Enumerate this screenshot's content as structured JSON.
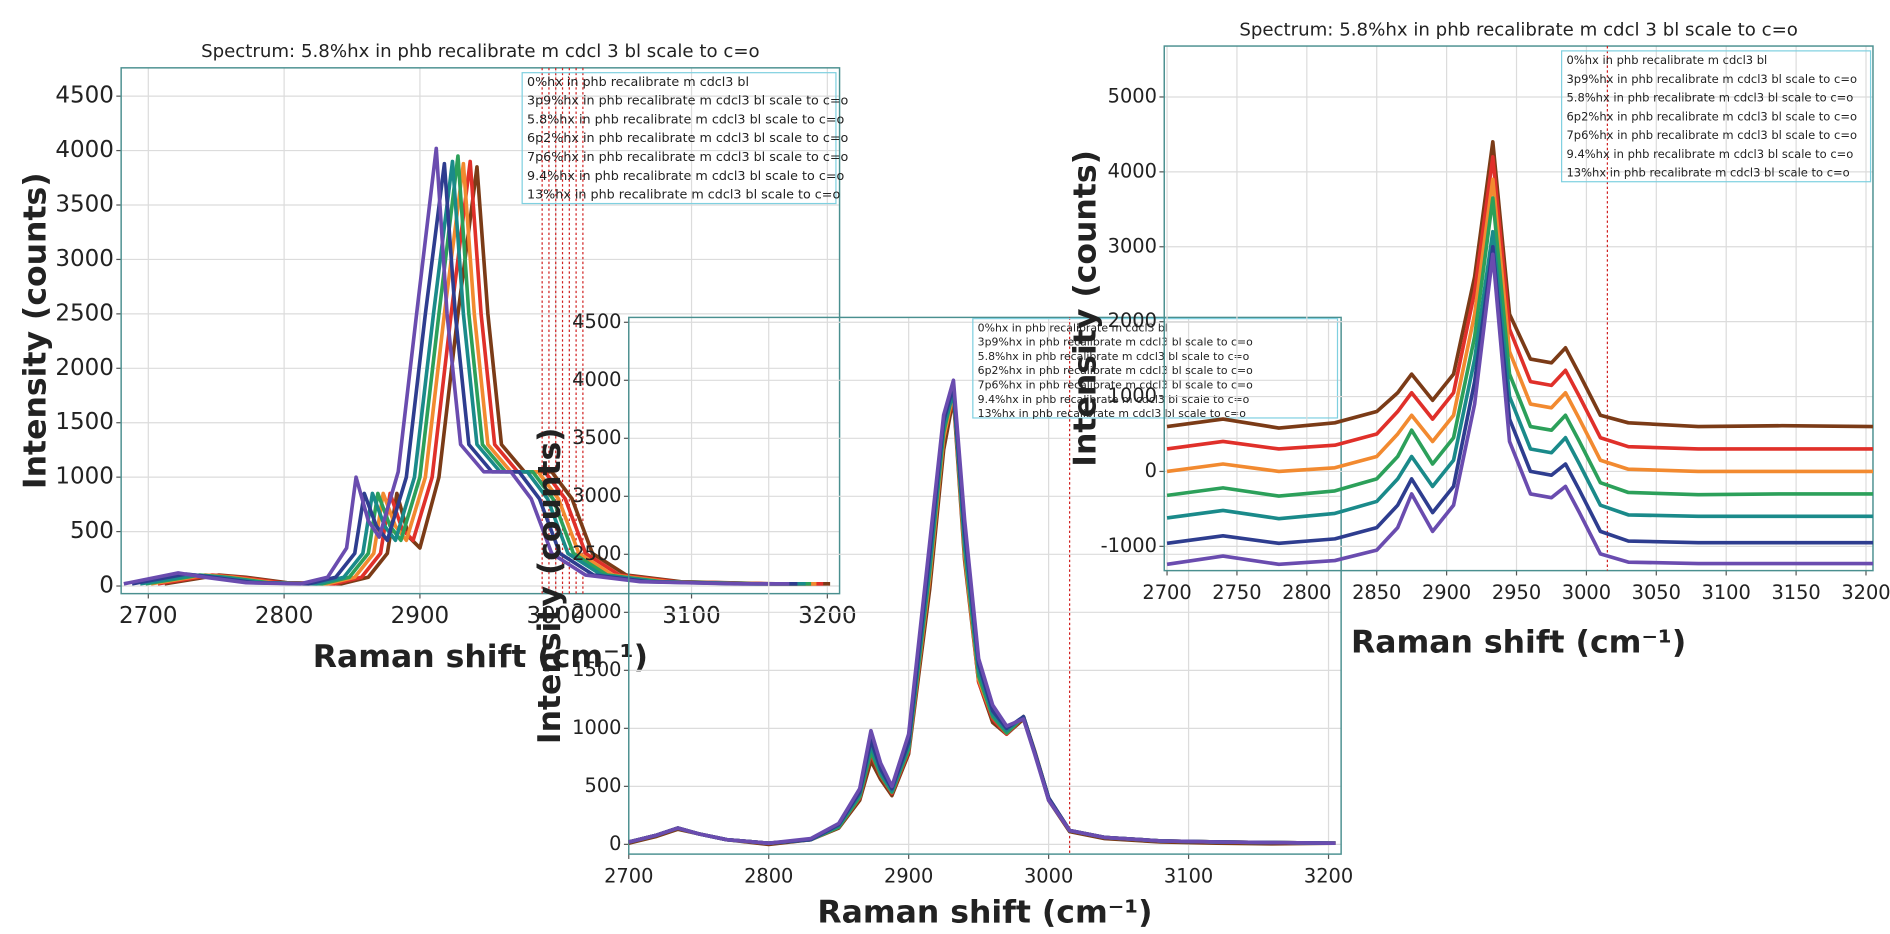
{
  "chart_data": [
    {
      "type": "line",
      "title": "Spectrum: 5.8%hx in phb recalibrate m cdcl 3 bl scale to c=o",
      "x_label": "Raman shift (cm⁻¹)",
      "y_label": "Intensity (counts)",
      "xlim": [
        2680,
        3209
      ],
      "xticks": [
        2700,
        2800,
        2900,
        3000,
        3100,
        3200
      ],
      "ylim": [
        -70,
        4760
      ],
      "yticks": [
        0,
        500,
        1000,
        1500,
        2000,
        2500,
        3000,
        3500,
        4000,
        4500
      ],
      "grid": true,
      "cursor_x": [
        2990,
        2995,
        3000,
        3005,
        3010,
        3015,
        3020
      ],
      "series": [
        {
          "name": "0%hx in phb recalibrate m cdcl3 bl",
          "color": "#7b3b17",
          "x": [
            2712,
            2752,
            2772,
            2802,
            2842,
            2862,
            2876,
            2883,
            2892,
            2900,
            2914,
            2928,
            2942,
            2950,
            2960,
            2977,
            2997,
            3012,
            3027,
            3052,
            3092,
            3162,
            3202
          ],
          "values": [
            20,
            100,
            80,
            30,
            20,
            80,
            300,
            850,
            450,
            350,
            1000,
            2500,
            3850,
            2500,
            1300,
            1050,
            1050,
            800,
            300,
            100,
            40,
            20,
            20
          ]
        },
        {
          "name": "3p9%hx in phb recalibrate m cdcl3 bl scale to c=o",
          "color": "#e0302a",
          "x": [
            2707,
            2747,
            2767,
            2797,
            2837,
            2857,
            2871,
            2878,
            2887,
            2895,
            2909,
            2923,
            2937,
            2945,
            2955,
            2972,
            2992,
            3007,
            3022,
            3047,
            3087,
            3157,
            3197
          ],
          "values": [
            20,
            100,
            80,
            30,
            20,
            80,
            300,
            850,
            520,
            420,
            1000,
            2500,
            3900,
            2500,
            1300,
            1050,
            1050,
            800,
            300,
            100,
            40,
            20,
            20
          ]
        },
        {
          "name": "5.8%hx in phb recalibrate m cdcl3 bl scale to c=o",
          "color": "#f28a30",
          "x": [
            2702,
            2742,
            2762,
            2792,
            2832,
            2852,
            2866,
            2873,
            2882,
            2890,
            2904,
            2918,
            2932,
            2940,
            2950,
            2967,
            2987,
            3002,
            3017,
            3042,
            3082,
            3152,
            3192
          ],
          "values": [
            20,
            100,
            80,
            30,
            20,
            80,
            300,
            850,
            550,
            420,
            1000,
            2500,
            3880,
            2500,
            1300,
            1050,
            1050,
            800,
            300,
            100,
            40,
            20,
            20
          ]
        },
        {
          "name": "6p2%hx in phb recalibrate m cdcl3 bl scale to c=o",
          "color": "#2ca05a",
          "x": [
            2698,
            2738,
            2758,
            2788,
            2828,
            2848,
            2862,
            2869,
            2878,
            2886,
            2900,
            2914,
            2928,
            2936,
            2946,
            2963,
            2983,
            2998,
            3013,
            3038,
            3078,
            3148,
            3188
          ],
          "values": [
            20,
            100,
            80,
            30,
            20,
            80,
            300,
            850,
            550,
            420,
            1000,
            2500,
            3950,
            2500,
            1300,
            1050,
            1050,
            800,
            300,
            100,
            40,
            20,
            20
          ]
        },
        {
          "name": "7p6%hx in phb recalibrate m cdcl3 bl scale to c=o",
          "color": "#1a8a8a",
          "x": [
            2694,
            2734,
            2754,
            2784,
            2824,
            2844,
            2858,
            2865,
            2874,
            2882,
            2896,
            2910,
            2924,
            2932,
            2942,
            2959,
            2979,
            2994,
            3009,
            3034,
            3074,
            3144,
            3184
          ],
          "values": [
            20,
            100,
            80,
            30,
            20,
            80,
            300,
            850,
            550,
            420,
            1000,
            2500,
            3900,
            2500,
            1300,
            1050,
            1050,
            800,
            300,
            100,
            40,
            20,
            20
          ]
        },
        {
          "name": "9.4%hx in phb recalibrate m cdcl3 bl scale to c=o",
          "color": "#2e3d8f",
          "x": [
            2688,
            2728,
            2748,
            2778,
            2818,
            2838,
            2852,
            2859,
            2868,
            2876,
            2890,
            2904,
            2918,
            2926,
            2936,
            2953,
            2973,
            2988,
            3003,
            3028,
            3068,
            3138,
            3178
          ],
          "values": [
            20,
            110,
            80,
            30,
            20,
            80,
            300,
            850,
            550,
            420,
            1000,
            2500,
            3880,
            2500,
            1300,
            1050,
            1050,
            800,
            300,
            100,
            40,
            20,
            20
          ]
        },
        {
          "name": "13%hx in phb recalibrate m cdcl3 bl scale to c=o",
          "color": "#6a4caf",
          "x": [
            2682,
            2722,
            2742,
            2772,
            2812,
            2832,
            2846,
            2853,
            2862,
            2870,
            2884,
            2898,
            2912,
            2920,
            2930,
            2947,
            2967,
            2982,
            2997,
            3022,
            3062,
            3132,
            3172
          ],
          "values": [
            20,
            120,
            80,
            30,
            20,
            80,
            350,
            1000,
            600,
            450,
            1050,
            2550,
            4020,
            2500,
            1300,
            1050,
            1050,
            800,
            300,
            100,
            40,
            20,
            20
          ]
        }
      ]
    },
    {
      "type": "line",
      "x_label": "Raman shift (cm⁻¹)",
      "y_label": "Intensity (counts)",
      "xlim": [
        2700,
        3209
      ],
      "xticks": [
        2700,
        2800,
        2900,
        3000,
        3100,
        3200
      ],
      "ylim": [
        -84,
        4542
      ],
      "yticks": [
        0,
        500,
        1000,
        1500,
        2000,
        2500,
        3000,
        3500,
        4000,
        4500
      ],
      "grid": true,
      "cursor_x": [
        3015
      ],
      "x": [
        2700,
        2720,
        2735,
        2750,
        2770,
        2800,
        2830,
        2850,
        2865,
        2873,
        2880,
        2888,
        2900,
        2915,
        2925,
        2932,
        2940,
        2950,
        2960,
        2970,
        2982,
        2990,
        3000,
        3015,
        3040,
        3080,
        3120,
        3160,
        3205
      ],
      "series": [
        {
          "name": "0%hx in phb recalibrate m cdcl3 bl",
          "color": "#7b3b17",
          "values": [
            10,
            70,
            130,
            90,
            40,
            0,
            40,
            140,
            380,
            720,
            560,
            420,
            780,
            2200,
            3400,
            3850,
            2450,
            1400,
            1050,
            950,
            1080,
            800,
            380,
            110,
            50,
            20,
            10,
            5,
            10
          ]
        },
        {
          "name": "3p9%hx in phb recalibrate m cdcl3 bl scale to c=o",
          "color": "#e0302a",
          "values": [
            20,
            80,
            140,
            90,
            40,
            10,
            40,
            150,
            400,
            780,
            590,
            440,
            800,
            2300,
            3500,
            3880,
            2500,
            1400,
            1080,
            950,
            1100,
            800,
            400,
            120,
            60,
            30,
            20,
            15,
            10
          ]
        },
        {
          "name": "5.8%hx in phb recalibrate m cdcl3 bl scale to c=o",
          "color": "#f28a30",
          "values": [
            20,
            80,
            140,
            90,
            40,
            10,
            40,
            150,
            410,
            820,
            600,
            450,
            820,
            2300,
            3500,
            3900,
            2500,
            1420,
            1100,
            960,
            1100,
            810,
            400,
            120,
            60,
            30,
            20,
            15,
            10
          ]
        },
        {
          "name": "6p2%hx in phb recalibrate m cdcl3 bl scale to c=o",
          "color": "#2ca05a",
          "values": [
            20,
            80,
            140,
            90,
            40,
            10,
            40,
            150,
            410,
            800,
            600,
            450,
            820,
            2350,
            3550,
            3920,
            2550,
            1450,
            1100,
            960,
            1100,
            800,
            400,
            120,
            60,
            30,
            20,
            15,
            10
          ]
        },
        {
          "name": "7p6%hx in phb recalibrate m cdcl3 bl scale to c=o",
          "color": "#1a8a8a",
          "values": [
            20,
            80,
            140,
            90,
            40,
            10,
            40,
            160,
            430,
            850,
            620,
            460,
            850,
            2400,
            3600,
            3900,
            2600,
            1500,
            1120,
            980,
            1100,
            800,
            400,
            120,
            60,
            30,
            20,
            15,
            10
          ]
        },
        {
          "name": "9.4%hx in phb recalibrate m cdcl3 bl scale to c=o",
          "color": "#2e3d8f",
          "values": [
            20,
            80,
            140,
            90,
            40,
            10,
            40,
            170,
            450,
            900,
            650,
            480,
            880,
            2500,
            3650,
            3950,
            2700,
            1550,
            1150,
            1000,
            1100,
            800,
            400,
            120,
            60,
            30,
            20,
            15,
            10
          ]
        },
        {
          "name": "13%hx in phb recalibrate m cdcl3 bl scale to c=o",
          "color": "#6a4caf",
          "values": [
            20,
            80,
            140,
            90,
            40,
            10,
            50,
            180,
            480,
            980,
            700,
            500,
            950,
            2600,
            3700,
            4000,
            2800,
            1600,
            1200,
            1020,
            1080,
            780,
            380,
            120,
            60,
            30,
            20,
            15,
            10
          ]
        }
      ]
    },
    {
      "type": "line",
      "title": "Spectrum: 5.8%hx in phb recalibrate m cdcl 3 bl scale to c=o",
      "x_label": "Raman shift (cm⁻¹)",
      "y_label": "Intensity (counts)",
      "xlim": [
        2698,
        3205
      ],
      "xticks": [
        2700,
        2750,
        2800,
        2850,
        2900,
        2950,
        3000,
        3050,
        3100,
        3150,
        3200
      ],
      "ylim": [
        -1324,
        5680
      ],
      "yticks": [
        -1000,
        0,
        1000,
        2000,
        3000,
        4000,
        5000
      ],
      "grid": true,
      "cursor_x": [
        3015
      ],
      "x": [
        2700,
        2740,
        2780,
        2820,
        2850,
        2865,
        2875,
        2890,
        2905,
        2920,
        2933,
        2945,
        2960,
        2975,
        2985,
        2995,
        3010,
        3030,
        3080,
        3140,
        3205
      ],
      "series": [
        {
          "name": "0%hx in phb recalibrate m cdcl3 bl",
          "color": "#7b3b17",
          "values": [
            600,
            700,
            580,
            650,
            800,
            1050,
            1300,
            950,
            1300,
            2600,
            4400,
            2100,
            1500,
            1450,
            1650,
            1300,
            750,
            650,
            600,
            610,
            600
          ]
        },
        {
          "name": "3p9%hx in phb recalibrate m cdcl3 bl scale to c=o",
          "color": "#e0302a",
          "values": [
            300,
            400,
            300,
            350,
            500,
            800,
            1050,
            700,
            1050,
            2400,
            4200,
            1900,
            1200,
            1150,
            1350,
            1000,
            450,
            330,
            300,
            300,
            300
          ]
        },
        {
          "name": "5.8%hx in phb recalibrate m cdcl3 bl scale to c=o",
          "color": "#f28a30",
          "values": [
            0,
            100,
            0,
            50,
            200,
            500,
            750,
            400,
            750,
            2100,
            3900,
            1600,
            900,
            850,
            1050,
            700,
            150,
            30,
            0,
            0,
            0
          ]
        },
        {
          "name": "6p2%hx in phb recalibrate m cdcl3 bl scale to c=o",
          "color": "#2ca05a",
          "values": [
            -320,
            -220,
            -330,
            -260,
            -100,
            200,
            550,
            100,
            450,
            1800,
            3650,
            1300,
            600,
            550,
            750,
            400,
            -150,
            -280,
            -310,
            -300,
            -300
          ]
        },
        {
          "name": "7p6%hx in phb recalibrate m cdcl3 bl scale to c=o",
          "color": "#1a8a8a",
          "values": [
            -620,
            -520,
            -630,
            -560,
            -400,
            -100,
            200,
            -200,
            150,
            1500,
            3200,
            1000,
            300,
            250,
            450,
            100,
            -450,
            -580,
            -600,
            -600,
            -600
          ]
        },
        {
          "name": "9.4%hx in phb recalibrate m cdcl3 bl scale to c=o",
          "color": "#2e3d8f",
          "values": [
            -960,
            -860,
            -960,
            -900,
            -750,
            -450,
            -100,
            -550,
            -200,
            1200,
            3000,
            700,
            0,
            -50,
            100,
            -250,
            -800,
            -930,
            -950,
            -950,
            -950
          ]
        },
        {
          "name": "13%hx in phb recalibrate m cdcl3 bl scale to c=o",
          "color": "#6a4caf",
          "values": [
            -1240,
            -1130,
            -1240,
            -1190,
            -1050,
            -750,
            -300,
            -800,
            -450,
            900,
            2900,
            400,
            -300,
            -350,
            -200,
            -550,
            -1100,
            -1210,
            -1230,
            -1230,
            -1230
          ]
        }
      ]
    }
  ]
}
